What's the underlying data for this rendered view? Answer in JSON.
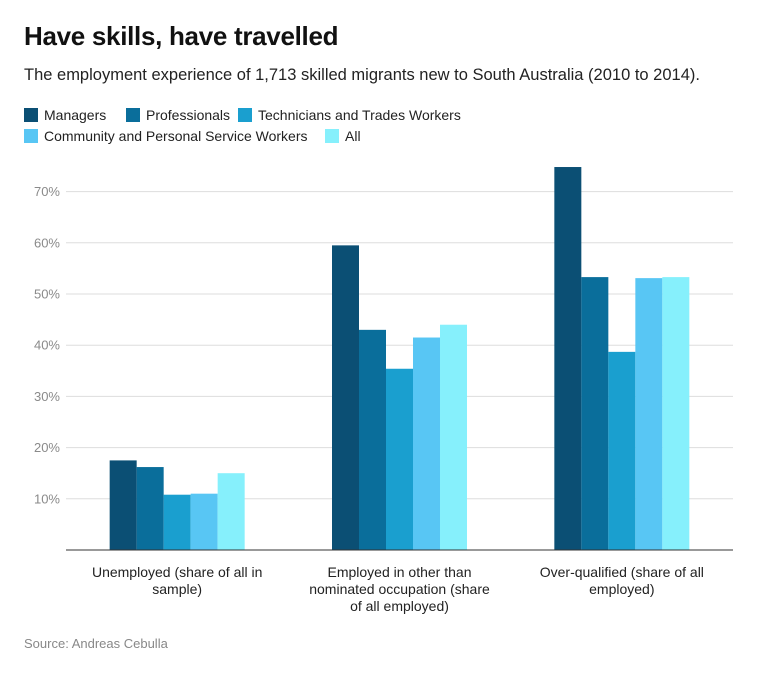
{
  "title": "Have skills, have travelled",
  "subtitle": "The employment experience of 1,713 skilled migrants new to South Australia (2010 to 2014).",
  "source": "Source: Andreas Cebulla",
  "chart_data": {
    "type": "bar",
    "categories": [
      [
        "Unemployed (share of all in",
        "sample)"
      ],
      [
        "Employed in other than",
        "nominated occupation (share",
        "of all employed)"
      ],
      [
        "Over-qualified (share of all",
        "employed)"
      ]
    ],
    "series": [
      {
        "name": "Managers",
        "color": "#0b4f74",
        "values": [
          17.5,
          59.5,
          74.8
        ]
      },
      {
        "name": "Professionals",
        "color": "#0a6e9b",
        "values": [
          16.2,
          43.0,
          53.3
        ]
      },
      {
        "name": "Technicians and Trades Workers",
        "color": "#1a9fcf",
        "values": [
          10.8,
          35.4,
          38.7
        ]
      },
      {
        "name": "Community and Personal Service Workers",
        "color": "#58c6f4",
        "values": [
          11.0,
          41.5,
          53.1
        ]
      },
      {
        "name": "All",
        "color": "#86f0fc",
        "values": [
          15.0,
          44.0,
          53.3
        ]
      }
    ],
    "yticks": [
      10,
      20,
      30,
      40,
      50,
      60,
      70
    ],
    "ytick_labels": [
      "10%",
      "20%",
      "30%",
      "40%",
      "50%",
      "60%",
      "70%"
    ],
    "ylim": [
      0,
      75
    ],
    "grid": true,
    "legend_position": "top-left"
  }
}
